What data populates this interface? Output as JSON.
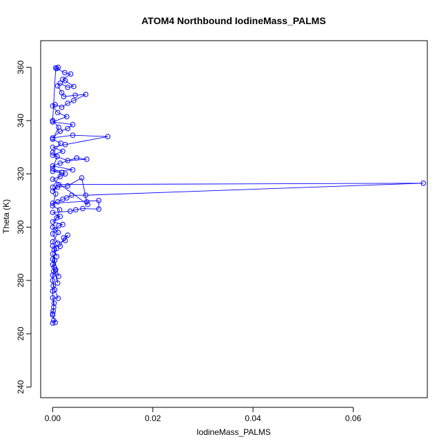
{
  "chart_data": {
    "type": "scatter",
    "title": "ATOM4 Northbound IodineMass_PALMS",
    "xlabel": "IodineMass_PALMS",
    "ylabel": "Theta (K)",
    "xlim": [
      -0.0024,
      0.0748
    ],
    "ylim": [
      236,
      370
    ],
    "xticks": [
      0.0,
      0.02,
      0.04,
      0.06
    ],
    "xtick_labels": [
      "0.00",
      "0.02",
      "0.04",
      "0.06"
    ],
    "yticks": [
      240,
      260,
      280,
      300,
      320,
      340,
      360
    ],
    "ytick_labels": [
      "240",
      "260",
      "280",
      "300",
      "320",
      "340",
      "360"
    ],
    "grid": false,
    "legend": "none",
    "series": [
      {
        "style": "lines+points",
        "color": "#0000ff",
        "points": [
          [
            0.0,
            264.0
          ],
          [
            0.0002,
            265.0
          ],
          [
            0.0005,
            264.2
          ],
          [
            0.0,
            267.0
          ],
          [
            0.0001,
            268.5
          ],
          [
            0.0003,
            271.5
          ],
          [
            0.0,
            273.5
          ],
          [
            0.0011,
            273.3
          ],
          [
            0.0004,
            276.5
          ],
          [
            0.0,
            280.0
          ],
          [
            0.0002,
            283.5
          ],
          [
            0.0006,
            284.0
          ],
          [
            0.001,
            279.0
          ],
          [
            0.0,
            286.0
          ],
          [
            0.0004,
            287.5
          ],
          [
            0.0012,
            281.5
          ],
          [
            0.0,
            290.0
          ],
          [
            0.0003,
            291.5
          ],
          [
            0.0008,
            289.0
          ],
          [
            0.0,
            293.0
          ],
          [
            0.0015,
            292.8
          ],
          [
            0.0022,
            296.0
          ],
          [
            0.003,
            297.0
          ],
          [
            0.0025,
            295.0
          ],
          [
            0.001,
            294.0
          ],
          [
            0.0,
            297.5
          ],
          [
            0.0005,
            299.0
          ],
          [
            0.0012,
            300.5
          ],
          [
            0.002,
            301.0
          ],
          [
            0.0,
            302.0
          ],
          [
            0.0008,
            303.5
          ],
          [
            0.0015,
            304.0
          ],
          [
            0.0,
            305.5
          ],
          [
            0.0035,
            306.0
          ],
          [
            0.0046,
            306.5
          ],
          [
            0.006,
            307.0
          ],
          [
            0.0092,
            306.8
          ],
          [
            0.0092,
            310.0
          ],
          [
            0.0,
            309.0
          ],
          [
            0.001,
            309.5
          ],
          [
            0.002,
            310.5
          ],
          [
            0.0028,
            311.0
          ],
          [
            0.0038,
            312.0
          ],
          [
            0.0066,
            312.0
          ],
          [
            0.074,
            316.5
          ],
          [
            0.0012,
            316.0
          ],
          [
            0.0,
            313.5
          ],
          [
            0.001,
            315.0
          ],
          [
            0.003,
            315.5
          ],
          [
            0.0058,
            318.5
          ],
          [
            0.0068,
            309.5
          ],
          [
            0.007,
            308.5
          ],
          [
            0.0,
            318.0
          ],
          [
            0.0015,
            319.0
          ],
          [
            0.0025,
            320.0
          ],
          [
            0.0,
            321.0
          ],
          [
            0.004,
            321.5
          ],
          [
            0.0,
            323.0
          ],
          [
            0.0015,
            324.0
          ],
          [
            0.0048,
            326.0
          ],
          [
            0.0068,
            325.5
          ],
          [
            0.003,
            325.0
          ],
          [
            0.0,
            327.0
          ],
          [
            0.002,
            328.5
          ],
          [
            0.0,
            330.0
          ],
          [
            0.0025,
            331.0
          ],
          [
            0.011,
            334.0
          ],
          [
            0.004,
            334.5
          ],
          [
            0.0,
            333.5
          ],
          [
            0.0015,
            336.0
          ],
          [
            0.003,
            337.0
          ],
          [
            0.004,
            338.5
          ],
          [
            0.0,
            339.5
          ],
          [
            0.0028,
            341.5
          ],
          [
            0.001,
            343.0
          ],
          [
            0.0,
            345.5
          ],
          [
            0.0005,
            346.0
          ],
          [
            0.0018,
            345.0
          ],
          [
            0.003,
            346.5
          ],
          [
            0.0042,
            347.5
          ],
          [
            0.0066,
            349.8
          ],
          [
            0.0045,
            349.5
          ],
          [
            0.0022,
            349.0
          ],
          [
            0.0018,
            350.5
          ],
          [
            0.001,
            353.0
          ],
          [
            0.0015,
            354.0
          ],
          [
            0.003,
            352.5
          ],
          [
            0.0042,
            352.8
          ],
          [
            0.0025,
            355.0
          ],
          [
            0.002,
            355.5
          ],
          [
            0.0036,
            357.5
          ],
          [
            0.0024,
            358.0
          ],
          [
            0.0008,
            359.5
          ],
          [
            0.0011,
            360.0
          ],
          [
            0.0006,
            359.8
          ],
          [
            0.0,
            340.0
          ],
          [
            0.0012,
            337.5
          ],
          [
            0.0,
            333.0
          ],
          [
            0.0016,
            331.5
          ],
          [
            0.0,
            328.0
          ],
          [
            0.0009,
            326.5
          ],
          [
            0.0,
            322.0
          ],
          [
            0.0018,
            320.5
          ],
          [
            0.0,
            315.0
          ],
          [
            0.0006,
            312.5
          ],
          [
            0.0,
            308.0
          ],
          [
            0.0014,
            306.5
          ],
          [
            0.0,
            300.0
          ],
          [
            0.0011,
            298.0
          ],
          [
            0.0,
            294.5
          ],
          [
            0.0008,
            292.0
          ],
          [
            0.0,
            288.0
          ],
          [
            0.0003,
            285.0
          ],
          [
            0.0,
            282.0
          ],
          [
            0.0001,
            278.0
          ],
          [
            0.0,
            276.0
          ],
          [
            0.0002,
            270.0
          ],
          [
            0.0,
            267.5
          ]
        ]
      }
    ]
  }
}
